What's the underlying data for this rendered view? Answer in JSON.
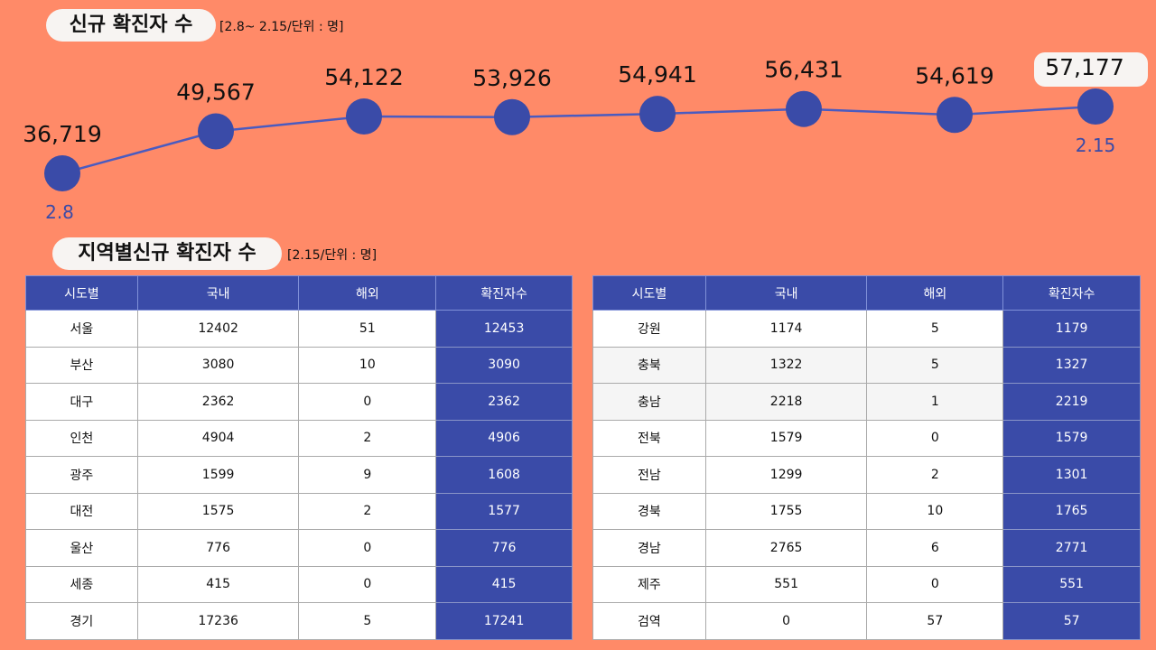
{
  "header": {
    "title": "신규 확진자 수",
    "subtitle": "[2.8~ 2.15/단위 : 명]"
  },
  "chart_data": {
    "type": "line",
    "x_labels": [
      "2.8",
      "",
      "",
      "",
      "",
      "",
      "",
      "2.15"
    ],
    "values": [
      36719,
      49567,
      54122,
      53926,
      54941,
      56431,
      54619,
      57177
    ],
    "value_labels": [
      "36,719",
      "49,567",
      "54,122",
      "53,926",
      "54,941",
      "56,431",
      "54,619",
      "57,177"
    ],
    "highlighted_point": "57,177",
    "line_color": "#4A5BC0",
    "marker_color": "#3A4BA8",
    "grid": false
  },
  "regional": {
    "title": "지역별신규 확진자 수",
    "subtitle": "[2.15/단위 : 명]",
    "columns": [
      "시도별",
      "국내",
      "해외",
      "확진자수"
    ],
    "left_rows": [
      [
        "서울",
        "12402",
        "51",
        "12453"
      ],
      [
        "부산",
        "3080",
        "10",
        "3090"
      ],
      [
        "대구",
        "2362",
        "0",
        "2362"
      ],
      [
        "인천",
        "4904",
        "2",
        "4906"
      ],
      [
        "광주",
        "1599",
        "9",
        "1608"
      ],
      [
        "대전",
        "1575",
        "2",
        "1577"
      ],
      [
        "울산",
        "776",
        "0",
        "776"
      ],
      [
        "세종",
        "415",
        "0",
        "415"
      ],
      [
        "경기",
        "17236",
        "5",
        "17241"
      ]
    ],
    "right_rows": [
      [
        "강원",
        "1174",
        "5",
        "1179"
      ],
      [
        "충북",
        "1322",
        "5",
        "1327"
      ],
      [
        "충남",
        "2218",
        "1",
        "2219"
      ],
      [
        "전북",
        "1579",
        "0",
        "1579"
      ],
      [
        "전남",
        "1299",
        "2",
        "1301"
      ],
      [
        "경북",
        "1755",
        "10",
        "1765"
      ],
      [
        "경남",
        "2765",
        "6",
        "2771"
      ],
      [
        "제주",
        "551",
        "0",
        "551"
      ],
      [
        "검역",
        "0",
        "57",
        "57"
      ]
    ]
  },
  "colors": {
    "background": "#FF8A68",
    "table_header": "#3A4BA8"
  }
}
